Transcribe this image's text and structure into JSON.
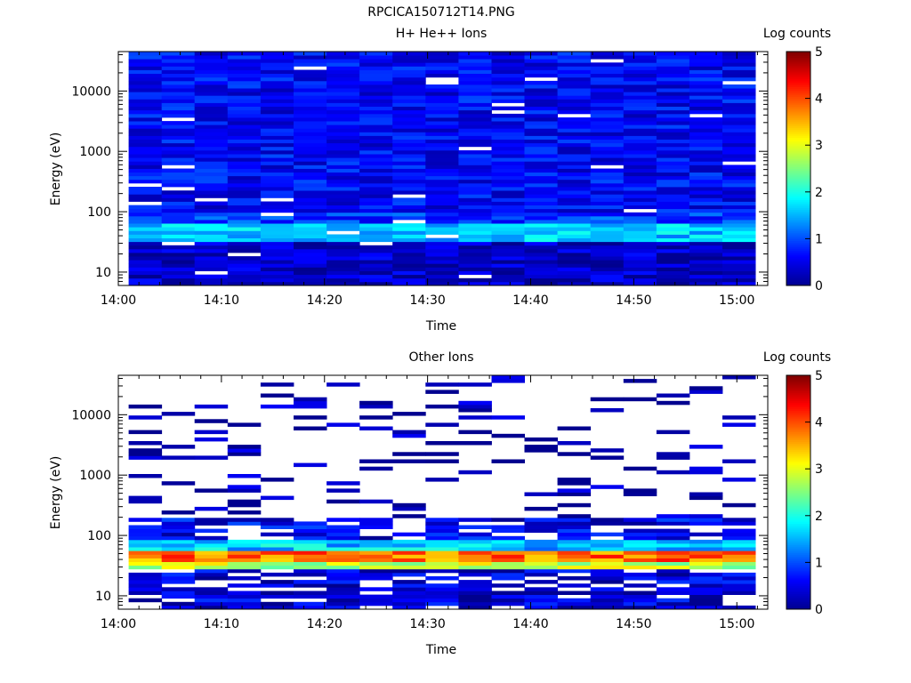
{
  "figure_title": "RPCICA150712T14.PNG",
  "colormap": [
    "#00008f",
    "#0000ff",
    "#007fff",
    "#00ffff",
    "#7fff7f",
    "#ffff00",
    "#ff7f00",
    "#ff0000",
    "#7f0000"
  ],
  "chart_data": [
    {
      "type": "heatmap",
      "title": "H+ He++ Ions",
      "xlabel": "Time",
      "ylabel": "Energy (eV)",
      "xticks": [
        "14:00",
        "14:10",
        "14:20",
        "14:30",
        "14:40",
        "14:50",
        "15:00"
      ],
      "xlim": [
        "14:00",
        "15:03"
      ],
      "ylim": [
        6,
        45000
      ],
      "yscale": "log",
      "yticks": [
        "10",
        "100",
        "1000",
        "10000"
      ],
      "colorbar_label": "Log counts",
      "colorbar_ticks": [
        "0",
        "1",
        "2",
        "3",
        "4",
        "5"
      ],
      "colorbar_range": [
        0,
        5
      ],
      "time_bins": 19,
      "time_start": "14:01",
      "time_step_min": 3.2,
      "energy_bins": 64,
      "fill_all": true,
      "peak_levels": [
        {
          "energy_range_eV": [
            30,
            60
          ],
          "log_counts": 1.6
        },
        {
          "energy_range_eV": [
            60,
            100
          ],
          "log_counts": 0.9
        },
        {
          "energy_range_eV": [
            100,
            45000
          ],
          "log_counts": 0.6
        },
        {
          "energy_range_eV": [
            6,
            30
          ],
          "log_counts": 0.3
        }
      ]
    },
    {
      "type": "heatmap",
      "title": "Other Ions",
      "xlabel": "Time",
      "ylabel": "Energy (eV)",
      "xticks": [
        "14:00",
        "14:10",
        "14:20",
        "14:30",
        "14:40",
        "14:50",
        "15:00"
      ],
      "xlim": [
        "14:00",
        "15:03"
      ],
      "ylim": [
        6,
        45000
      ],
      "yscale": "log",
      "yticks": [
        "10",
        "100",
        "1000",
        "10000"
      ],
      "colorbar_label": "Log counts",
      "colorbar_ticks": [
        "0",
        "1",
        "2",
        "3",
        "4",
        "5"
      ],
      "colorbar_range": [
        0,
        5
      ],
      "time_bins": 19,
      "time_start": "14:01",
      "time_step_min": 3.2,
      "energy_bins": 64,
      "fill_all": false,
      "peak_levels": [
        {
          "energy_range_eV": [
            38,
            55
          ],
          "log_counts": 3.8
        },
        {
          "energy_range_eV": [
            28,
            38
          ],
          "log_counts": 2.8
        },
        {
          "energy_range_eV": [
            55,
            90
          ],
          "log_counts": 1.6
        },
        {
          "energy_range_eV": [
            90,
            200
          ],
          "log_counts": 0.5
        },
        {
          "energy_range_eV": [
            6,
            28
          ],
          "log_counts": 0.4
        },
        {
          "energy_range_eV": [
            200,
            45000
          ],
          "log_counts": 0.1
        }
      ]
    }
  ]
}
